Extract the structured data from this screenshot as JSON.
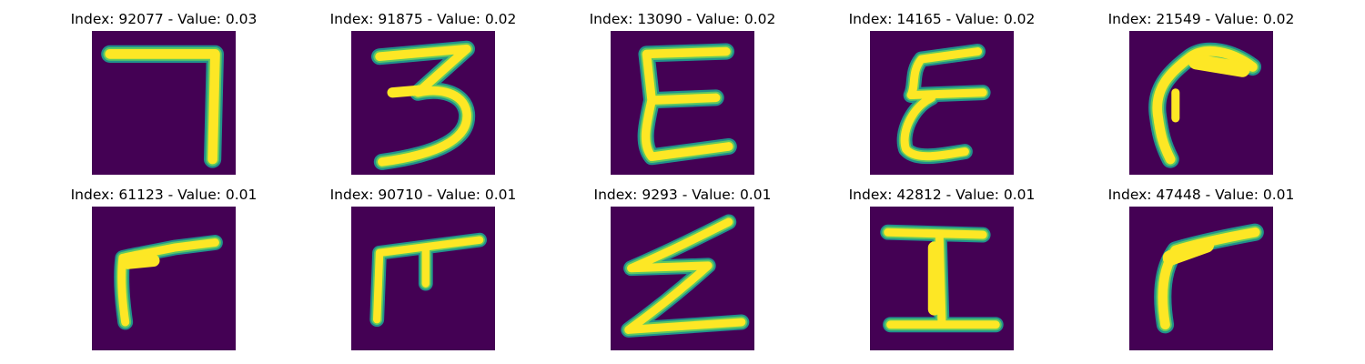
{
  "colors": {
    "background": "#440154",
    "edge_dark": "#21918c",
    "edge_light": "#5ec962",
    "ink": "#fde725"
  },
  "panels": [
    {
      "title": "Index: 92077 - Value: 0.03",
      "glyph": "glyph-seven"
    },
    {
      "title": "Index: 91875 - Value: 0.02",
      "glyph": "glyph-three"
    },
    {
      "title": "Index: 13090 - Value: 0.02",
      "glyph": "glyph-e-block"
    },
    {
      "title": "Index: 14165 - Value: 0.02",
      "glyph": "glyph-e-curly"
    },
    {
      "title": "Index: 21549 - Value: 0.02",
      "glyph": "glyph-hook"
    },
    {
      "title": "Index: 61123 - Value: 0.01",
      "glyph": "glyph-r"
    },
    {
      "title": "Index: 90710 - Value: 0.01",
      "glyph": "glyph-pi"
    },
    {
      "title": "Index: 9293 - Value: 0.01",
      "glyph": "glyph-z"
    },
    {
      "title": "Index: 42812 - Value: 0.01",
      "glyph": "glyph-i"
    },
    {
      "title": "Index: 47448 - Value: 0.01",
      "glyph": "glyph-r-wide"
    }
  ]
}
